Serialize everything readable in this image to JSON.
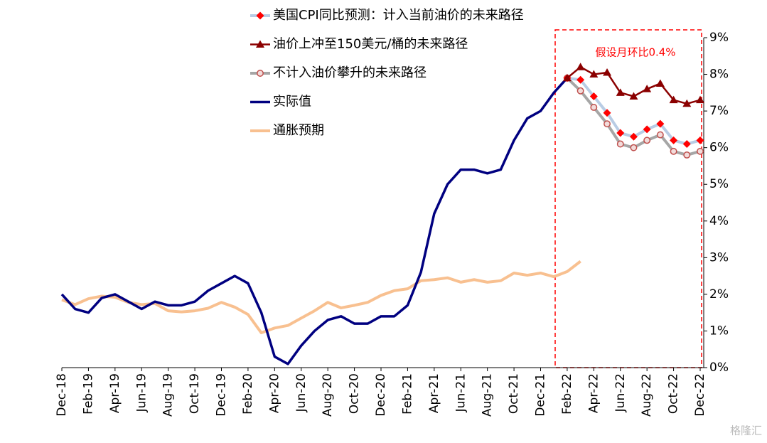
{
  "chart_data": {
    "type": "line",
    "categories": [
      "Dec-18",
      null,
      "Feb-19",
      null,
      "Apr-19",
      null,
      "Jun-19",
      null,
      "Aug-19",
      null,
      "Oct-19",
      null,
      "Dec-19",
      null,
      "Feb-20",
      null,
      "Apr-20",
      null,
      "Jun-20",
      null,
      "Aug-20",
      null,
      "Oct-20",
      null,
      "Dec-20",
      null,
      "Feb-21",
      null,
      "Apr-21",
      null,
      "Jun-21",
      null,
      "Aug-21",
      null,
      "Oct-21",
      null,
      "Dec-21",
      null,
      "Feb-22",
      null,
      "Apr-22",
      null,
      "Jun-22",
      null,
      "Aug-22",
      null,
      "Oct-22",
      null,
      "Dec-22"
    ],
    "series": [
      {
        "name": "美国CPI同比预测：计入当前油价的未来路径",
        "color": "#b8cce4",
        "marker": "diamond",
        "marker_color": "#ff0000",
        "values": [
          null,
          null,
          null,
          null,
          null,
          null,
          null,
          null,
          null,
          null,
          null,
          null,
          null,
          null,
          null,
          null,
          null,
          null,
          null,
          null,
          null,
          null,
          null,
          null,
          null,
          null,
          null,
          null,
          null,
          null,
          null,
          null,
          null,
          null,
          null,
          null,
          null,
          null,
          7.9,
          7.85,
          7.4,
          6.95,
          6.4,
          6.3,
          6.5,
          6.65,
          6.2,
          6.1,
          6.2
        ]
      },
      {
        "name": "油价上冲至150美元/桶的未来路径",
        "color": "#8b0000",
        "marker": "triangle",
        "marker_color": "#8b0000",
        "values": [
          null,
          null,
          null,
          null,
          null,
          null,
          null,
          null,
          null,
          null,
          null,
          null,
          null,
          null,
          null,
          null,
          null,
          null,
          null,
          null,
          null,
          null,
          null,
          null,
          null,
          null,
          null,
          null,
          null,
          null,
          null,
          null,
          null,
          null,
          null,
          null,
          null,
          null,
          7.9,
          8.2,
          8.0,
          8.05,
          7.5,
          7.4,
          7.6,
          7.75,
          7.3,
          7.2,
          7.3
        ]
      },
      {
        "name": "不计入油价攀升的未来路径",
        "color": "#a6a6a6",
        "marker": "circle",
        "marker_color": "#c0504d",
        "values": [
          null,
          null,
          null,
          null,
          null,
          null,
          null,
          null,
          null,
          null,
          null,
          null,
          null,
          null,
          null,
          null,
          null,
          null,
          null,
          null,
          null,
          null,
          null,
          null,
          null,
          null,
          null,
          null,
          null,
          null,
          null,
          null,
          null,
          null,
          null,
          null,
          null,
          null,
          7.9,
          7.55,
          7.1,
          6.65,
          6.1,
          6.0,
          6.2,
          6.35,
          5.9,
          5.8,
          5.9
        ]
      },
      {
        "name": "实际值",
        "color": "#000080",
        "values": [
          2.0,
          1.6,
          1.5,
          1.9,
          2.0,
          1.8,
          1.6,
          1.8,
          1.7,
          1.7,
          1.8,
          2.1,
          2.3,
          2.5,
          2.3,
          1.5,
          0.3,
          0.1,
          0.6,
          1.0,
          1.3,
          1.4,
          1.2,
          1.2,
          1.4,
          1.4,
          1.7,
          2.6,
          4.2,
          5.0,
          5.4,
          5.4,
          5.3,
          5.4,
          6.2,
          6.8,
          7.0,
          7.5,
          7.9,
          null,
          null,
          null,
          null,
          null,
          null,
          null,
          null,
          null,
          null
        ]
      },
      {
        "name": "通胀预期",
        "color": "#f8c090",
        "values": [
          1.85,
          1.72,
          1.88,
          1.95,
          1.92,
          1.78,
          1.72,
          1.75,
          1.55,
          1.52,
          1.55,
          1.62,
          1.78,
          1.65,
          1.45,
          0.95,
          1.08,
          1.15,
          1.35,
          1.55,
          1.78,
          1.63,
          1.7,
          1.78,
          1.97,
          2.1,
          2.15,
          2.37,
          2.4,
          2.45,
          2.33,
          2.4,
          2.33,
          2.37,
          2.58,
          2.52,
          2.58,
          2.48,
          2.62,
          2.9,
          null,
          null,
          null,
          null,
          null,
          null,
          null,
          null,
          null
        ]
      }
    ],
    "ylim": [
      0,
      9
    ],
    "yticks": [
      {
        "value": 0,
        "label": "0%"
      },
      {
        "value": 1,
        "label": "1%"
      },
      {
        "value": 2,
        "label": "2%"
      },
      {
        "value": 3,
        "label": "3%"
      },
      {
        "value": 4,
        "label": "4%"
      },
      {
        "value": 5,
        "label": "5%"
      },
      {
        "value": 6,
        "label": "6%"
      },
      {
        "value": 7,
        "label": "7%"
      },
      {
        "value": 8,
        "label": "8%"
      },
      {
        "value": 9,
        "label": "9%"
      }
    ],
    "annotation": "假设月环比0.4%",
    "annotation_color": "#ff0000",
    "watermark": "格隆汇"
  }
}
